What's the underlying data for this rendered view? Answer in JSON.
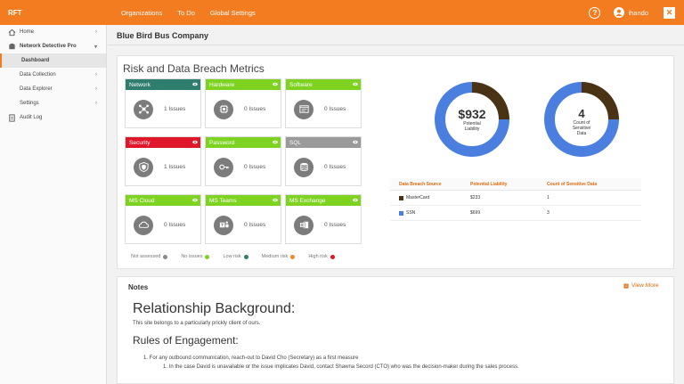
{
  "topbar": {
    "brand": "RFT",
    "nav": [
      "Organizations",
      "To Do",
      "Global Settings"
    ],
    "help": "?",
    "user": "ihando",
    "logo_glyph": "✕"
  },
  "sidebar": {
    "home": "Home",
    "product": "Network Detective Pro",
    "dashboard": "Dashboard",
    "data_collection": "Data Collection",
    "data_explorer": "Data Explorer",
    "settings": "Settings",
    "audit_log": "Audit Log"
  },
  "company": "Blue Bird Bus Company",
  "metrics": {
    "title": "Risk and Data Breach Metrics",
    "cards": [
      {
        "label": "Network",
        "count": "1 Issues",
        "color": "#2f7d6d",
        "icon": "network-icon"
      },
      {
        "label": "Hardware",
        "count": "0 Issues",
        "color": "#7ed321",
        "icon": "chip-icon"
      },
      {
        "label": "Software",
        "count": "0 Issues",
        "color": "#7ed321",
        "icon": "software-icon"
      },
      {
        "label": "Security",
        "count": "1 Issues",
        "color": "#e0162b",
        "icon": "shield-icon"
      },
      {
        "label": "Password",
        "count": "0 Issues",
        "color": "#7ed321",
        "icon": "key-icon"
      },
      {
        "label": "SQL",
        "count": "0 Issues",
        "color": "#9a9a9a",
        "icon": "database-icon"
      },
      {
        "label": "MS Cloud",
        "count": "0 Issues",
        "color": "#7ed321",
        "icon": "cloud-icon"
      },
      {
        "label": "MS Teams",
        "count": "0 Issues",
        "color": "#7ed321",
        "icon": "teams-icon"
      },
      {
        "label": "MS Exchange",
        "count": "0 Issues",
        "color": "#7ed321",
        "icon": "exchange-icon"
      }
    ],
    "legend": [
      {
        "label": "Not assessed",
        "color": "#8a8a8a"
      },
      {
        "label": "No issues",
        "color": "#7ed321"
      },
      {
        "label": "Low risk",
        "color": "#2f7d6d"
      },
      {
        "label": "Medium risk",
        "color": "#f08a24"
      },
      {
        "label": "High risk",
        "color": "#e0162b"
      }
    ]
  },
  "donuts": {
    "liability": {
      "value": "$932",
      "label_line1": "Potential",
      "label_line2": "Liability"
    },
    "sensitive": {
      "value": "4",
      "label_line1": "Count of",
      "label_line2": "Sensitive",
      "label_line3": "Data"
    }
  },
  "breach_table": {
    "headers": [
      "Data Breach Source",
      "Potential Liability",
      "Count of Sensitive Data"
    ],
    "rows": [
      {
        "source": "MasterCard",
        "liability": "$233",
        "count": "1",
        "color": "#4a3214"
      },
      {
        "source": "SSN",
        "liability": "$699",
        "count": "3",
        "color": "#4a7fe0"
      }
    ]
  },
  "chart_data": [
    {
      "type": "pie",
      "title": "",
      "categories": [
        "MasterCard",
        "SSN"
      ],
      "values": [
        233,
        699
      ],
      "center_text": "$932"
    },
    {
      "type": "pie",
      "title": "",
      "categories": [
        "MasterCard",
        "SSN"
      ],
      "values": [
        1,
        3
      ],
      "center_text": "4"
    }
  ],
  "notes": {
    "title": "Notes",
    "view_more": "View More",
    "heading1": "Relationship Background:",
    "text1": "This site belongs to a particularly prickly client of ours.",
    "heading2": "Rules of Engagement:",
    "item1": "1. For any outbound communication, reach-out to David Cho (Secretary) as a first measure",
    "item2": "1. In the case David is unavailable or the issue implicates David, contact Shawna Secord (CTO) who was the decision-maker during the sales process."
  }
}
